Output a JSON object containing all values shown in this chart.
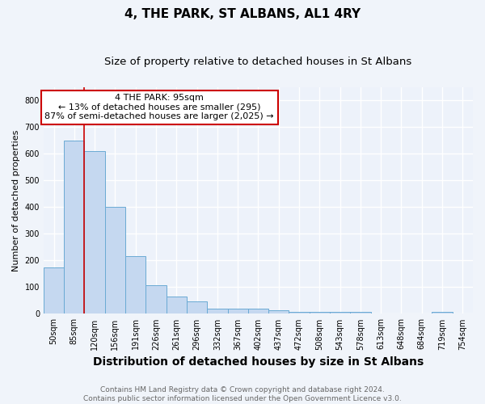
{
  "title": "4, THE PARK, ST ALBANS, AL1 4RY",
  "subtitle": "Size of property relative to detached houses in St Albans",
  "xlabel": "Distribution of detached houses by size in St Albans",
  "ylabel": "Number of detached properties",
  "categories": [
    "50sqm",
    "85sqm",
    "120sqm",
    "156sqm",
    "191sqm",
    "226sqm",
    "261sqm",
    "296sqm",
    "332sqm",
    "367sqm",
    "402sqm",
    "437sqm",
    "472sqm",
    "508sqm",
    "543sqm",
    "578sqm",
    "613sqm",
    "648sqm",
    "684sqm",
    "719sqm",
    "754sqm"
  ],
  "values": [
    175,
    650,
    610,
    400,
    215,
    107,
    65,
    48,
    20,
    18,
    18,
    12,
    8,
    8,
    8,
    8,
    0,
    0,
    0,
    8,
    0
  ],
  "bar_color": "#c5d8f0",
  "bar_edge_color": "#6aaad4",
  "annotation_text": "4 THE PARK: 95sqm\n← 13% of detached houses are smaller (295)\n87% of semi-detached houses are larger (2,025) →",
  "annotation_box_color": "#ffffff",
  "annotation_box_edge_color": "#cc0000",
  "ylim": [
    0,
    850
  ],
  "yticks": [
    0,
    100,
    200,
    300,
    400,
    500,
    600,
    700,
    800
  ],
  "footer_line1": "Contains HM Land Registry data © Crown copyright and database right 2024.",
  "footer_line2": "Contains public sector information licensed under the Open Government Licence v3.0.",
  "bg_color": "#f0f4fa",
  "plot_bg_color": "#edf2fa",
  "grid_color": "#ffffff",
  "title_fontsize": 11,
  "subtitle_fontsize": 9.5,
  "xlabel_fontsize": 10,
  "ylabel_fontsize": 8,
  "tick_fontsize": 7,
  "footer_fontsize": 6.5,
  "ann_fontsize": 8
}
